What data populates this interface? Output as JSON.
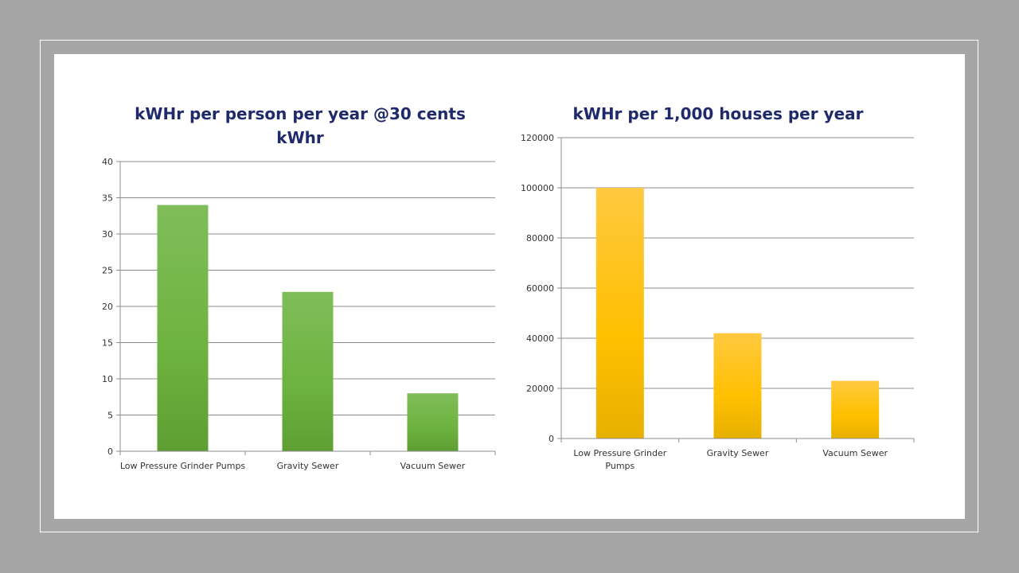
{
  "colors": {
    "background": "#a6a6a6",
    "slide": "#ffffff",
    "title": "#1f2a6b",
    "green_bar": "#6db33f",
    "yellow_bar": "#ffc000",
    "grid": "#8c8c8c"
  },
  "chart_data": [
    {
      "type": "bar",
      "title": "kWHr per person per year @30 cents kWhr",
      "title_lines": [
        "kWHr per person per year @30 cents",
        "kWhr"
      ],
      "categories": [
        "Low Pressure Grinder Pumps",
        "Gravity Sewer",
        "Vacuum Sewer"
      ],
      "category_lines": [
        [
          "Low Pressure Grinder Pumps"
        ],
        [
          "Gravity Sewer"
        ],
        [
          "Vacuum Sewer"
        ]
      ],
      "values": [
        34,
        22,
        8
      ],
      "ylim": [
        0,
        40
      ],
      "yticks": [
        0,
        5,
        10,
        15,
        20,
        25,
        30,
        35,
        40
      ],
      "grid": true,
      "legend": "none",
      "color": "#6db33f"
    },
    {
      "type": "bar",
      "title": "kWHr per 1,000 houses per year",
      "title_lines": [
        "kWHr per 1,000 houses per year"
      ],
      "categories": [
        "Low Pressure Grinder Pumps",
        "Gravity Sewer",
        "Vacuum Sewer"
      ],
      "category_lines": [
        [
          "Low Pressure Grinder",
          "Pumps"
        ],
        [
          "Gravity Sewer"
        ],
        [
          "Vacuum Sewer"
        ]
      ],
      "values": [
        100000,
        42000,
        23000
      ],
      "ylim": [
        0,
        120000
      ],
      "yticks": [
        0,
        20000,
        40000,
        60000,
        80000,
        100000,
        120000
      ],
      "grid": true,
      "legend": "none",
      "color": "#ffc000"
    }
  ]
}
